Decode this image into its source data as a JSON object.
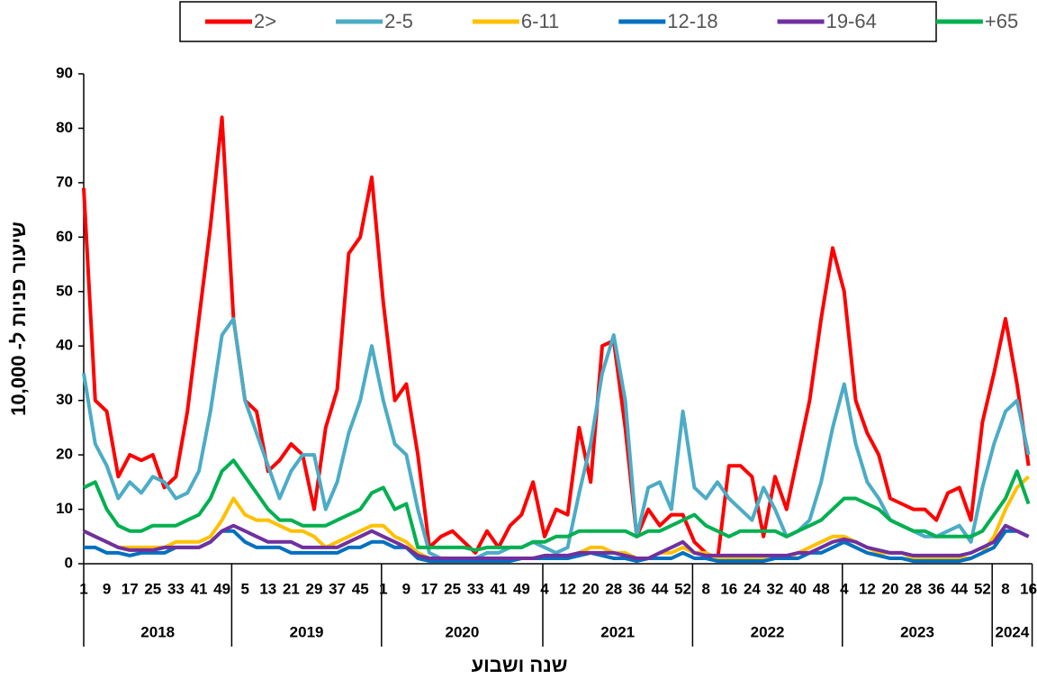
{
  "chart_data": {
    "type": "line",
    "y_label": "שיעור פניות ל- 10,000",
    "x_label": "שנה ושבוע",
    "ylim": [
      0,
      90
    ],
    "yticks": [
      0,
      10,
      20,
      30,
      40,
      50,
      60,
      70,
      80,
      90
    ],
    "grid": false,
    "legend": "top",
    "category_groups": [
      {
        "label": "2018",
        "categories": [
          "1",
          null,
          "9",
          null,
          "17",
          null,
          "25",
          null,
          "33",
          null,
          "41",
          null,
          "49"
        ]
      },
      {
        "label": "2019",
        "categories": [
          null,
          "5",
          null,
          "13",
          null,
          "21",
          null,
          "29",
          null,
          "37",
          null,
          "45",
          null
        ]
      },
      {
        "label": "2020",
        "categories": [
          "1",
          null,
          "9",
          null,
          "17",
          null,
          "25",
          null,
          "33",
          null,
          "41",
          null,
          "49",
          null
        ]
      },
      {
        "label": "2021",
        "categories": [
          "4",
          null,
          "12",
          null,
          "20",
          null,
          "28",
          null,
          "36",
          null,
          "44",
          null,
          "52"
        ]
      },
      {
        "label": "2022",
        "categories": [
          null,
          "8",
          null,
          "16",
          null,
          "24",
          null,
          "32",
          null,
          "40",
          null,
          "48",
          null
        ]
      },
      {
        "label": "2023",
        "categories": [
          "4",
          null,
          "12",
          null,
          "20",
          null,
          "28",
          null,
          "36",
          null,
          "44",
          null,
          "52"
        ]
      },
      {
        "label": "2024",
        "categories": [
          null,
          "8",
          null,
          "16"
        ]
      }
    ],
    "series": [
      {
        "name": "2>",
        "color": "#ff0000",
        "values": [
          69,
          30,
          28,
          16,
          20,
          19,
          20,
          14,
          16,
          28,
          45,
          62,
          82,
          45,
          30,
          28,
          17,
          19,
          22,
          20,
          10,
          25,
          32,
          57,
          60,
          71,
          48,
          30,
          33,
          20,
          3,
          5,
          6,
          4,
          2,
          6,
          3,
          7,
          9,
          15,
          5,
          10,
          9,
          25,
          15,
          40,
          41,
          25,
          5,
          10,
          7,
          9,
          9,
          4,
          2,
          0.5,
          18,
          18,
          16,
          5,
          16,
          10,
          20,
          30,
          45,
          58,
          50,
          30,
          24,
          20,
          12,
          11,
          10,
          10,
          8,
          13,
          14,
          8,
          26,
          35,
          45,
          33,
          18
        ]
      },
      {
        "name": "2-5",
        "color": "#4bacc6",
        "values": [
          35,
          22,
          18,
          12,
          15,
          13,
          16,
          15,
          12,
          13,
          17,
          28,
          42,
          45,
          30,
          24,
          18,
          12,
          17,
          20,
          20,
          10,
          15,
          24,
          30,
          40,
          30,
          22,
          20,
          10,
          2,
          1,
          1,
          1,
          1,
          2,
          2,
          3,
          3,
          4,
          3,
          2,
          3,
          13,
          22,
          35,
          42,
          30,
          5,
          14,
          15,
          10,
          28,
          14,
          12,
          15,
          12,
          10,
          8,
          14,
          10,
          5,
          6,
          8,
          15,
          25,
          33,
          22,
          15,
          12,
          8,
          7,
          6,
          5,
          5,
          6,
          7,
          4,
          14,
          22,
          28,
          30,
          20
        ]
      },
      {
        "name": "6-11",
        "color": "#ffc000",
        "values": [
          6,
          5,
          4,
          3,
          3,
          3,
          3,
          3,
          4,
          4,
          4,
          5,
          8,
          12,
          9,
          8,
          8,
          7,
          6,
          6,
          5,
          3,
          4,
          5,
          6,
          7,
          7,
          5,
          4,
          2,
          1,
          0.5,
          0.5,
          0.5,
          0.5,
          1,
          1,
          1,
          1,
          1,
          1,
          1,
          1,
          2,
          3,
          3,
          2,
          2,
          1,
          1,
          2,
          2,
          3,
          2,
          2,
          1,
          1,
          1,
          1,
          1,
          1,
          1,
          2,
          3,
          4,
          5,
          5,
          4,
          3,
          2,
          2,
          2,
          1,
          1,
          1,
          1,
          1,
          1,
          2,
          5,
          10,
          14,
          16
        ]
      },
      {
        "name": "12-18",
        "color": "#0070c0",
        "values": [
          3,
          3,
          2,
          2,
          1.5,
          2,
          2,
          2,
          3,
          3,
          3,
          4,
          6,
          6,
          4,
          3,
          3,
          3,
          2,
          2,
          2,
          2,
          2,
          3,
          3,
          4,
          4,
          3,
          3,
          1,
          0.5,
          0.5,
          0.5,
          0.5,
          0.5,
          0.5,
          0.5,
          0.5,
          1,
          1,
          1,
          1,
          1,
          1.5,
          2,
          1.5,
          1,
          1,
          0.5,
          1,
          1,
          1,
          2,
          1,
          1,
          0.5,
          0.5,
          0.5,
          0.5,
          0.5,
          1,
          1,
          1,
          2,
          2,
          3,
          4,
          3,
          2,
          1.5,
          1,
          1,
          0.5,
          0.5,
          0.5,
          0.5,
          0.5,
          1,
          2,
          3,
          6,
          6,
          5
        ]
      },
      {
        "name": "19-64",
        "color": "#7030a0",
        "values": [
          6,
          5,
          4,
          3,
          2.5,
          2.5,
          2.5,
          3,
          3,
          3,
          3,
          4,
          6,
          7,
          6,
          5,
          4,
          4,
          4,
          3,
          3,
          3,
          3,
          4,
          5,
          6,
          5,
          4,
          3,
          1.5,
          1,
          1,
          1,
          1,
          1,
          1,
          1,
          1,
          1,
          1,
          1.5,
          1.5,
          1.5,
          2,
          2,
          2,
          2,
          1.5,
          1,
          1,
          2,
          3,
          4,
          2,
          1.5,
          1.5,
          1.5,
          1.5,
          1.5,
          1.5,
          1.5,
          1.5,
          2,
          2,
          3,
          4,
          4.5,
          4,
          3,
          2.5,
          2,
          2,
          1.5,
          1.5,
          1.5,
          1.5,
          1.5,
          2,
          3,
          4,
          7,
          6,
          5
        ]
      },
      {
        "name": "+65",
        "color": "#00b050",
        "values": [
          14,
          15,
          10,
          7,
          6,
          6,
          7,
          7,
          7,
          8,
          9,
          12,
          17,
          19,
          16,
          13,
          10,
          8,
          8,
          7,
          7,
          7,
          8,
          9,
          10,
          13,
          14,
          10,
          11,
          3,
          3,
          3,
          3,
          3,
          2.5,
          3,
          3,
          3,
          3,
          4,
          4,
          5,
          5,
          6,
          6,
          6,
          6,
          6,
          5,
          6,
          6,
          7,
          8,
          9,
          7,
          6,
          5,
          6,
          6,
          6,
          6,
          5,
          6,
          7,
          8,
          10,
          12,
          12,
          11,
          10,
          8,
          7,
          6,
          6,
          5,
          5,
          5,
          5,
          6,
          9,
          12,
          17,
          11
        ]
      }
    ]
  }
}
